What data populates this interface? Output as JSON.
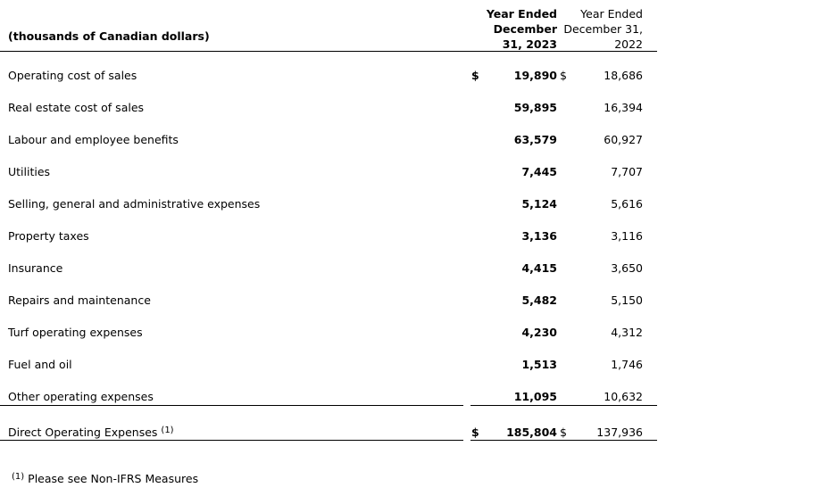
{
  "header": {
    "units": "(thousands of Canadian dollars)",
    "col2023": [
      "Year Ended",
      "December",
      "31, 2023"
    ],
    "col2022": [
      "Year Ended",
      "December 31,",
      "2022"
    ]
  },
  "currency": "$",
  "rows": [
    {
      "label": "Operating cost of sales",
      "v2023": "19,890",
      "v2022": "18,686",
      "dollar": true
    },
    {
      "label": "Real estate cost of sales",
      "v2023": "59,895",
      "v2022": "16,394"
    },
    {
      "label": "Labour and employee benefits",
      "v2023": "63,579",
      "v2022": "60,927"
    },
    {
      "label": "Utilities",
      "v2023": "7,445",
      "v2022": "7,707"
    },
    {
      "label": "Selling, general and administrative expenses",
      "v2023": "5,124",
      "v2022": "5,616"
    },
    {
      "label": "Property taxes",
      "v2023": "3,136",
      "v2022": "3,116"
    },
    {
      "label": "Insurance",
      "v2023": "4,415",
      "v2022": "3,650"
    },
    {
      "label": "Repairs and maintenance",
      "v2023": "5,482",
      "v2022": "5,150"
    },
    {
      "label": "Turf operating expenses",
      "v2023": "4,230",
      "v2022": "4,312"
    },
    {
      "label": "Fuel and oil",
      "v2023": "1,513",
      "v2022": "1,746"
    },
    {
      "label": "Other operating expenses",
      "v2023": "11,095",
      "v2022": "10,632"
    }
  ],
  "total": {
    "label": "Direct Operating Expenses",
    "note": "(1)",
    "v2023": "185,804",
    "v2022": "137,936"
  },
  "footnote": {
    "marker": "(1)",
    "text": "Please see Non-IFRS Measures"
  }
}
